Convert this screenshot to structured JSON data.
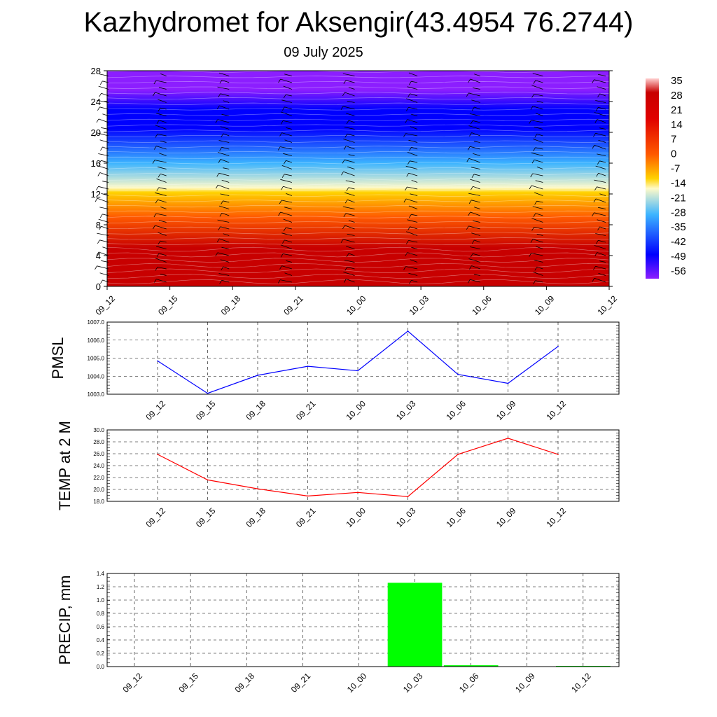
{
  "header": {
    "title": "Kazhydromet for Aksengir(43.4954 76.2744)",
    "subtitle": "09 July 2025"
  },
  "chart_data": [
    {
      "type": "heatmap",
      "title": "",
      "xlabel": "",
      "ylabel": "",
      "x_ticks": [
        "09_12",
        "09_15",
        "09_18",
        "09_21",
        "10_00",
        "10_03",
        "10_06",
        "10_09",
        "10_12"
      ],
      "y_ticks": [
        0,
        4,
        8,
        12,
        16,
        20,
        24,
        28
      ],
      "ylim": [
        0,
        28
      ],
      "colorbar_ticks": [
        35,
        28,
        21,
        14,
        7,
        0,
        -7,
        -14,
        -21,
        -28,
        -35,
        -42,
        -49,
        -56
      ],
      "colorbar_range": [
        -63,
        40
      ],
      "colors": {
        "hot": "#c80000",
        "warm": "#ff5a00",
        "mild": "#ffd200",
        "zero": "#fffac8",
        "cool": "#3cb4ff",
        "cold": "#0000ff",
        "top": "#8c1eff"
      },
      "wind_barbs": true
    },
    {
      "type": "line",
      "ylabel": "PMSL",
      "categories": [
        "09_12",
        "09_15",
        "09_18",
        "09_21",
        "10_00",
        "10_03",
        "10_06",
        "10_09",
        "10_12"
      ],
      "values": [
        1004.85,
        1003.05,
        1004.05,
        1004.55,
        1004.3,
        1006.5,
        1004.1,
        1003.6,
        1005.65
      ],
      "ylim": [
        1003.0,
        1007.0
      ],
      "y_ticks": [
        "1003.0",
        "1004.0",
        "1005.0",
        "1006.0",
        "1007.0"
      ],
      "color": "#0000ff",
      "grid": true
    },
    {
      "type": "line",
      "ylabel": "TEMP at 2 M",
      "categories": [
        "09_12",
        "09_15",
        "09_18",
        "09_21",
        "10_00",
        "10_03",
        "10_06",
        "10_09",
        "10_12"
      ],
      "values": [
        25.9,
        21.6,
        20.1,
        18.9,
        19.5,
        18.8,
        25.9,
        28.6,
        25.9
      ],
      "ylim": [
        18.0,
        30.0
      ],
      "y_ticks": [
        "18.0",
        "20.0",
        "22.0",
        "24.0",
        "26.0",
        "28.0",
        "30.0"
      ],
      "color": "#ff0000",
      "grid": true
    },
    {
      "type": "bar",
      "ylabel": "PRECIP, mm",
      "categories": [
        "09_12",
        "09_15",
        "09_18",
        "09_21",
        "10_00",
        "10_03",
        "10_06",
        "10_09",
        "10_12"
      ],
      "values": [
        0,
        0,
        0,
        0,
        0,
        1.26,
        0.02,
        0,
        0.01
      ],
      "ylim": [
        0,
        1.4
      ],
      "y_ticks": [
        "0.0",
        "0.2",
        "0.4",
        "0.6",
        "0.8",
        "1.0",
        "1.2",
        "1.4"
      ],
      "color": "#00ff00",
      "grid": true
    }
  ]
}
